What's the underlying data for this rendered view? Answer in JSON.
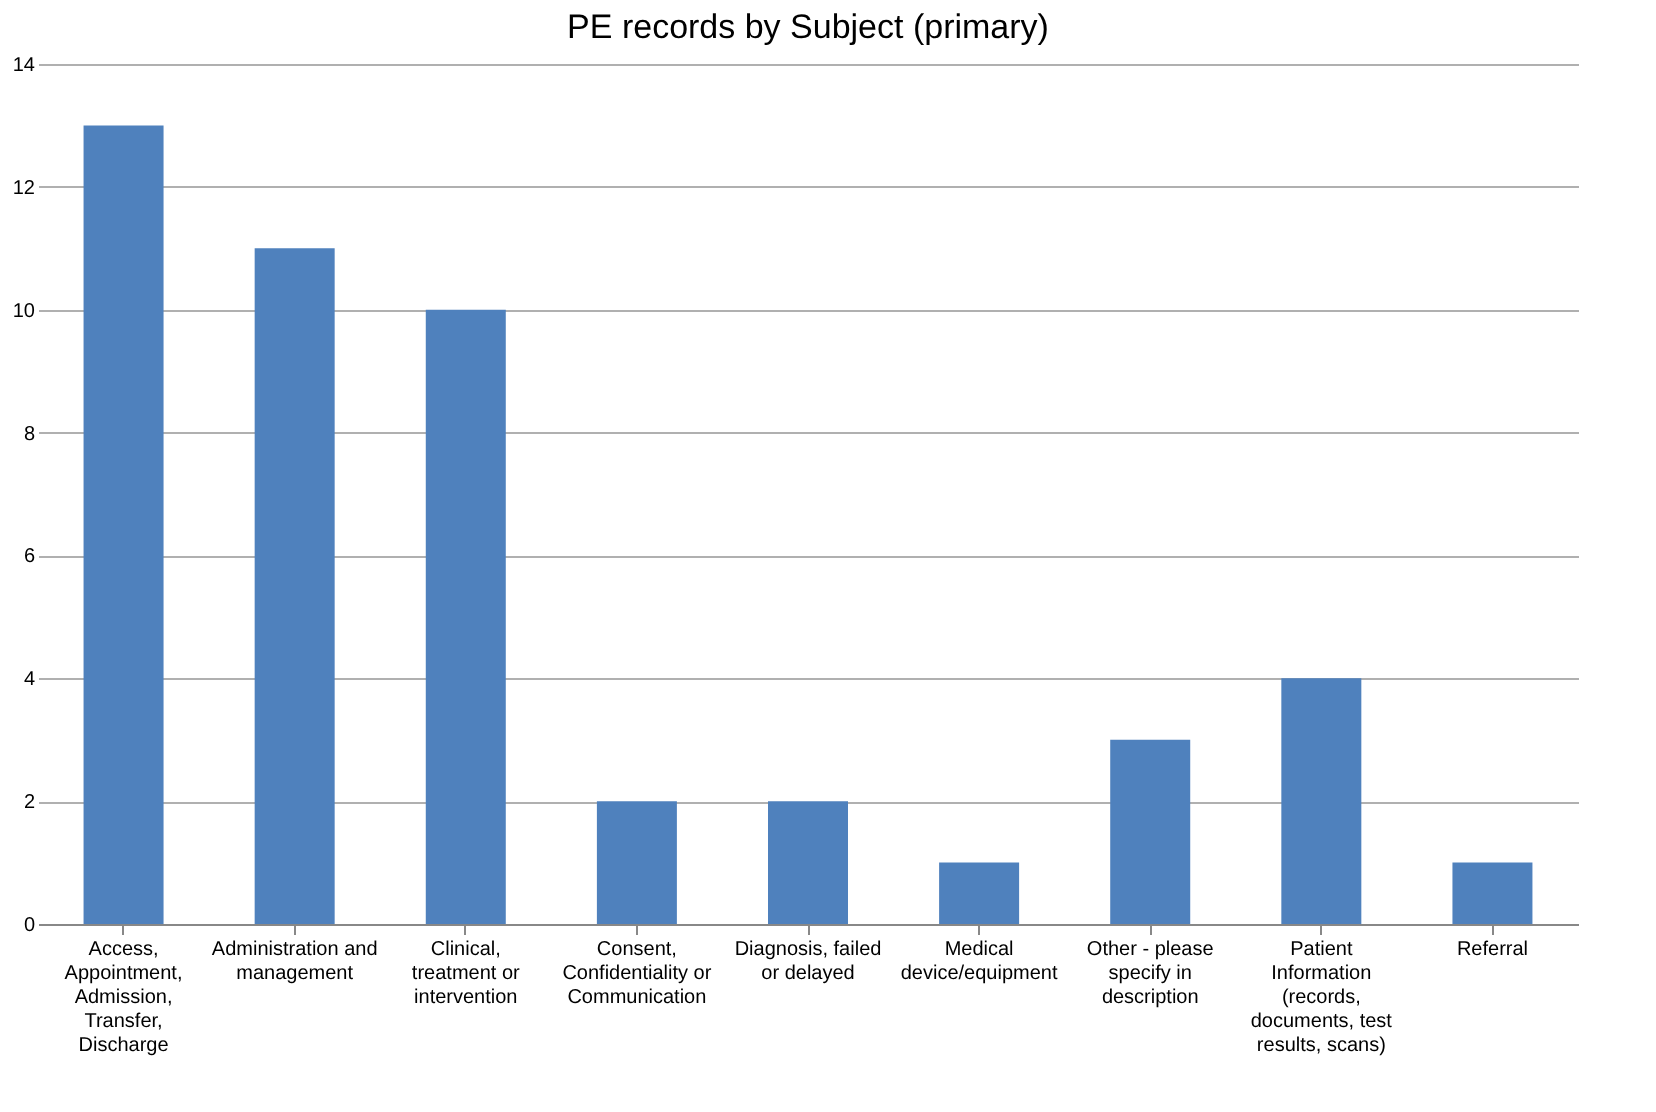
{
  "chart_data": {
    "type": "bar",
    "title": "PE records by Subject (primary)",
    "categories": [
      "Access, Appointment, Admission, Transfer, Discharge",
      "Administration and management",
      "Clinical, treatment or intervention",
      "Consent, Confidentiality or Communication",
      "Diagnosis, failed or delayed",
      "Medical device/equipment",
      "Other - please specify in description",
      "Patient Information (records, documents, test results, scans)",
      "Referral"
    ],
    "values": [
      13,
      11,
      10,
      2,
      2,
      1,
      3,
      4,
      1
    ],
    "color": "#4f81bd",
    "ylim": [
      0,
      14
    ],
    "yticks": [
      0,
      2,
      4,
      6,
      8,
      10,
      12,
      14
    ],
    "grid": "y"
  }
}
